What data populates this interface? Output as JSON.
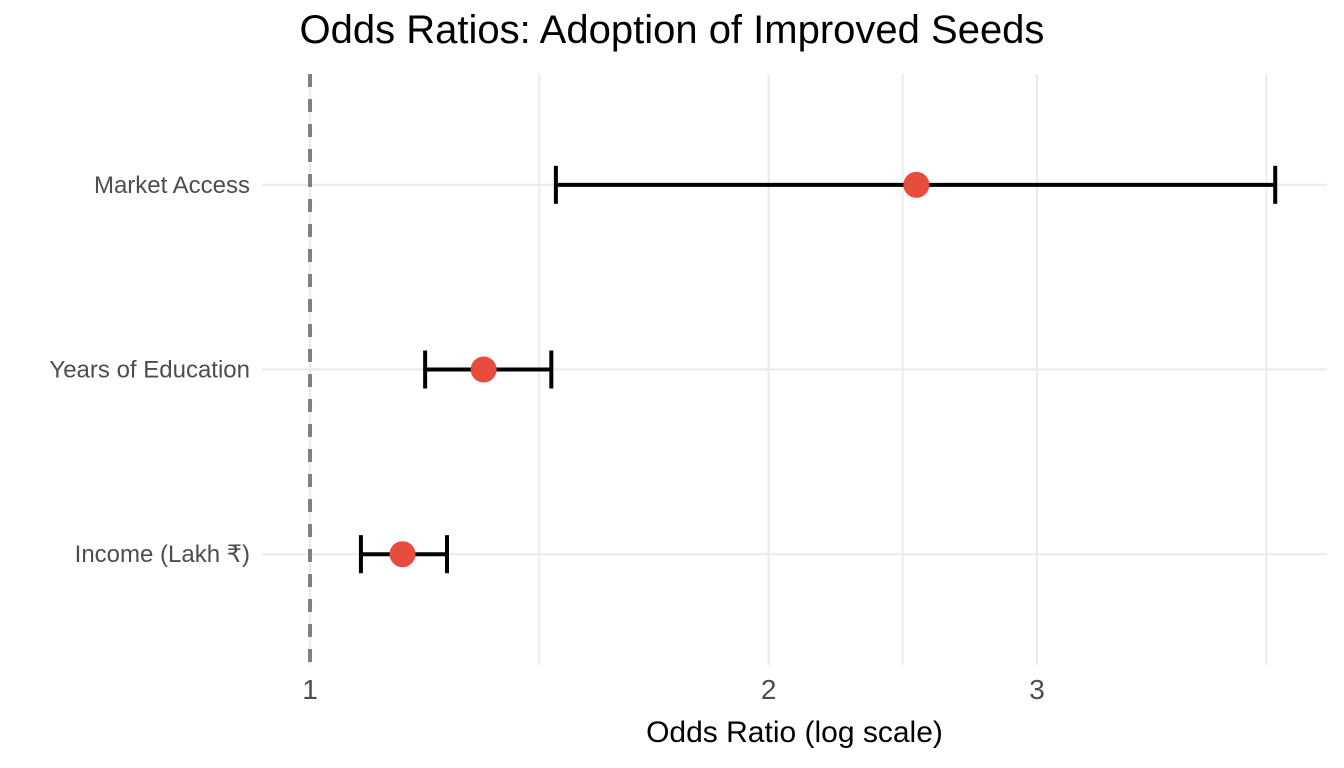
{
  "chart_data": {
    "type": "scatter",
    "variant": "forest-plot-odds-ratios",
    "title": "Odds Ratios: Adoption of Improved Seeds",
    "xlabel": "Odds Ratio (log scale)",
    "ylabel": "",
    "x_scale": "log10",
    "xlim": [
      0.93,
      4.65
    ],
    "x_major_ticks": [
      1,
      2,
      3
    ],
    "x_tick_labels": [
      "1",
      "2",
      "3"
    ],
    "x_minor_gridlines": [
      1.414,
      2.449,
      4.243
    ],
    "grid": "on",
    "legend": "none",
    "reference_line": {
      "x": 1,
      "style": "dashed"
    },
    "rows": [
      {
        "label": "Market Access",
        "or": 2.5,
        "ci_low": 1.45,
        "ci_high": 4.3
      },
      {
        "label": "Years of Education",
        "or": 1.3,
        "ci_low": 1.19,
        "ci_high": 1.44
      },
      {
        "label": "Income (Lakh ₹)",
        "or": 1.15,
        "ci_low": 1.08,
        "ci_high": 1.23
      }
    ],
    "colors": {
      "point": "#E74C3C",
      "errorbar": "#000000",
      "gridline": "#EBEBEB",
      "reference_line": "#808080",
      "axis_text": "#4D4D4D",
      "title_text": "#000000",
      "background": "#FFFFFF"
    }
  }
}
